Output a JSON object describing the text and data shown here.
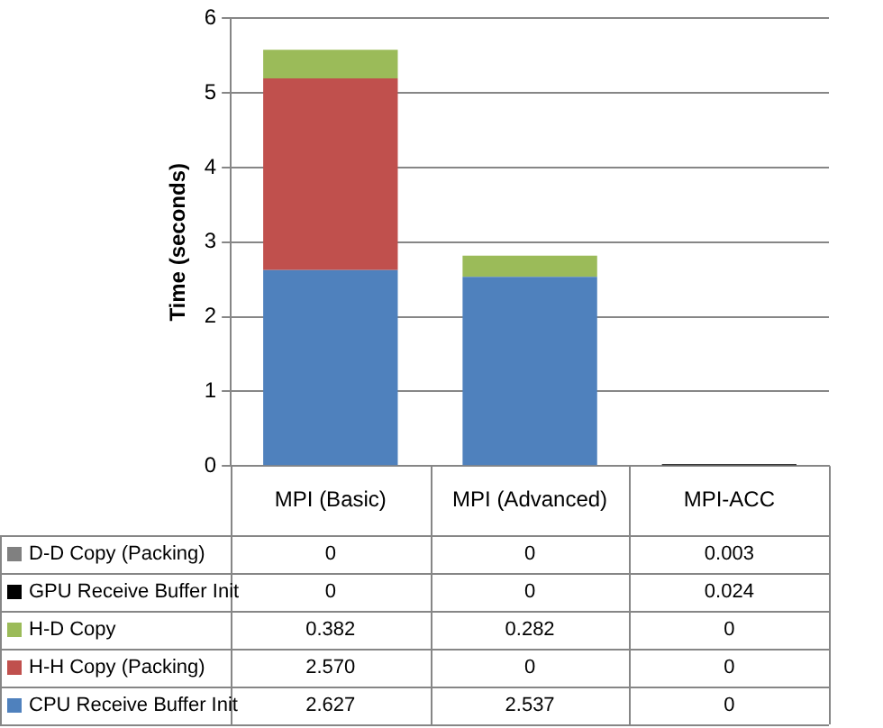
{
  "chart_data": {
    "type": "bar",
    "stacked": true,
    "ylabel": "Time (seconds)",
    "categories": [
      "MPI (Basic)",
      "MPI (Advanced)",
      "MPI-ACC"
    ],
    "series": [
      {
        "name": "CPU Receive Buffer Init",
        "color": "#4f81bd",
        "values": [
          2.627,
          2.537,
          0
        ],
        "value_labels": [
          "2.627",
          "2.537",
          "0"
        ]
      },
      {
        "name": "H-H Copy (Packing)",
        "color": "#c0504d",
        "values": [
          2.57,
          0,
          0
        ],
        "value_labels": [
          "2.570",
          "0",
          "0"
        ]
      },
      {
        "name": "H-D Copy",
        "color": "#9bbb59",
        "values": [
          0.382,
          0.282,
          0
        ],
        "value_labels": [
          "0.382",
          "0.282",
          "0"
        ]
      },
      {
        "name": "GPU Receive Buffer Init",
        "color": "#000000",
        "values": [
          0,
          0,
          0.024
        ],
        "value_labels": [
          "0",
          "0",
          "0.024"
        ]
      },
      {
        "name": "D-D Copy (Packing)",
        "color": "#808080",
        "values": [
          0,
          0,
          0.003
        ],
        "value_labels": [
          "0",
          "0",
          "0.003"
        ]
      }
    ],
    "ylim": [
      0,
      6
    ],
    "yticks": [
      0,
      1,
      2,
      3,
      4,
      5,
      6
    ],
    "grid": "y",
    "legend": "bottom"
  }
}
